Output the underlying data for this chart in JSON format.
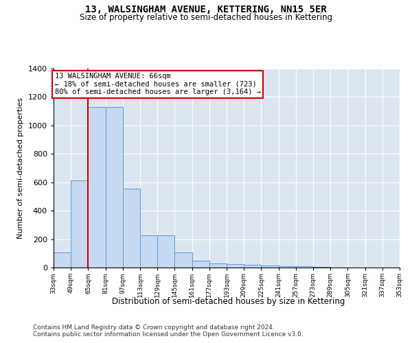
{
  "title": "13, WALSINGHAM AVENUE, KETTERING, NN15 5ER",
  "subtitle": "Size of property relative to semi-detached houses in Kettering",
  "xlabel": "Distribution of semi-detached houses by size in Kettering",
  "ylabel": "Number of semi-detached properties",
  "property_label": "13 WALSINGHAM AVENUE: 66sqm",
  "pct_smaller": 18,
  "pct_larger": 80,
  "n_smaller": 723,
  "n_larger": 3164,
  "bin_starts": [
    33,
    49,
    65,
    81,
    97,
    113,
    129,
    145,
    161,
    177,
    193,
    209,
    225,
    241,
    257,
    273,
    289,
    305,
    321,
    337
  ],
  "bin_width": 16,
  "bar_heights": [
    105,
    615,
    1130,
    1130,
    555,
    225,
    225,
    105,
    50,
    30,
    25,
    20,
    15,
    10,
    8,
    5,
    2,
    2,
    2,
    2
  ],
  "bar_color": "#c6d9f0",
  "bar_edge_color": "#5b9bd5",
  "red_line_x": 65,
  "red_line_color": "#cc0000",
  "annotation_box_color": "#cc0000",
  "ylim": [
    0,
    1400
  ],
  "yticks": [
    0,
    200,
    400,
    600,
    800,
    1000,
    1200,
    1400
  ],
  "plot_background": "#dce6f1",
  "footnote_line1": "Contains HM Land Registry data © Crown copyright and database right 2024.",
  "footnote_line2": "Contains public sector information licensed under the Open Government Licence v3.0.",
  "tick_labels": [
    "33sqm",
    "49sqm",
    "65sqm",
    "81sqm",
    "97sqm",
    "113sqm",
    "129sqm",
    "145sqm",
    "161sqm",
    "177sqm",
    "193sqm",
    "209sqm",
    "225sqm",
    "241sqm",
    "257sqm",
    "273sqm",
    "289sqm",
    "305sqm",
    "321sqm",
    "337sqm",
    "353sqm"
  ]
}
